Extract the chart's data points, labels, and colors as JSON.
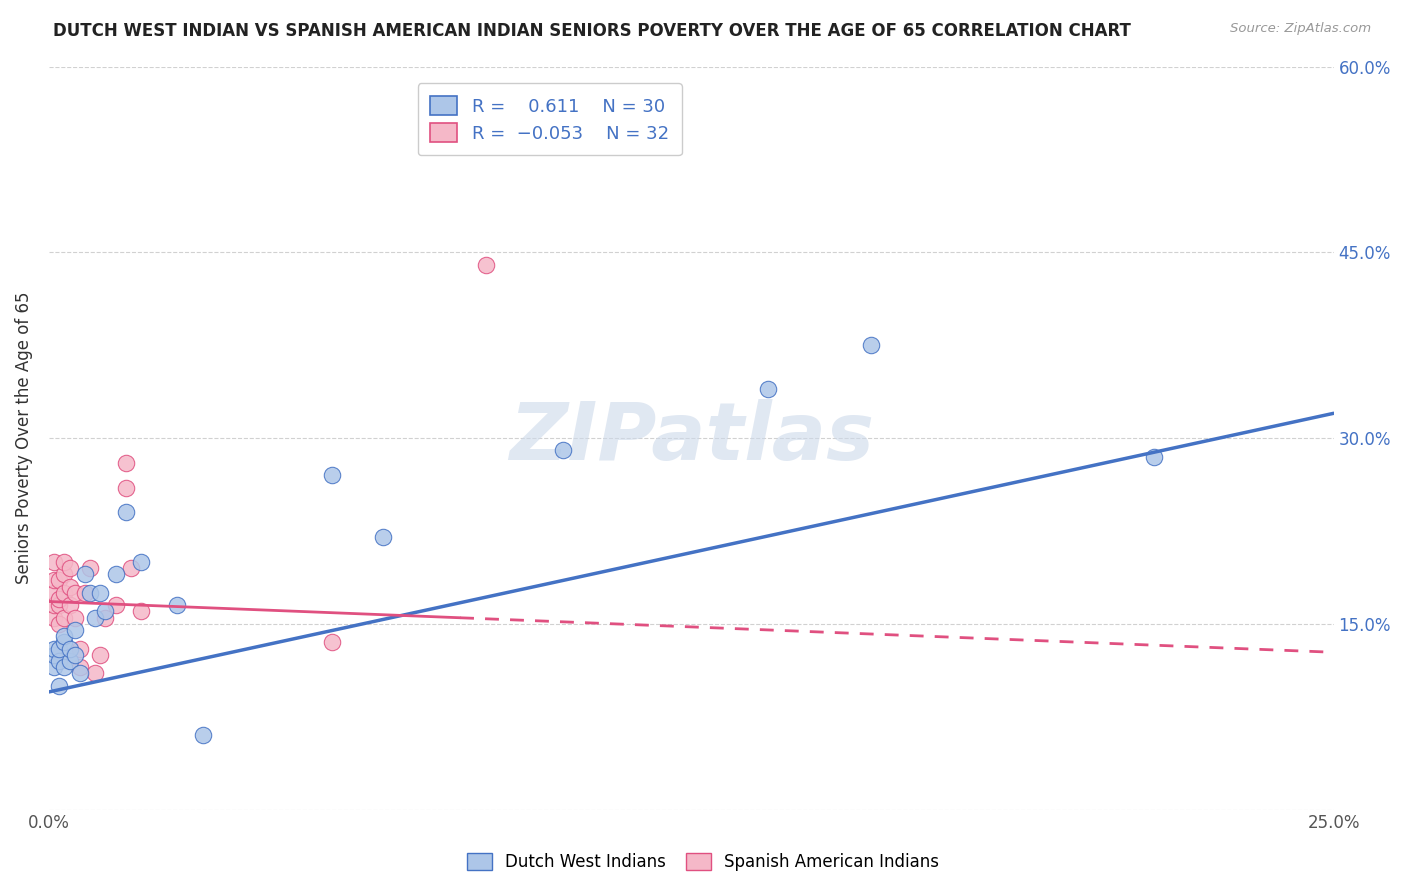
{
  "title": "DUTCH WEST INDIAN VS SPANISH AMERICAN INDIAN SENIORS POVERTY OVER THE AGE OF 65 CORRELATION CHART",
  "source": "Source: ZipAtlas.com",
  "ylabel": "Seniors Poverty Over the Age of 65",
  "xmin": 0.0,
  "xmax": 0.25,
  "ymin": 0.0,
  "ymax": 0.6,
  "color_blue": "#adc6e8",
  "color_pink": "#f5b8c8",
  "line_color_blue": "#4472c4",
  "line_color_pink": "#e05080",
  "watermark_color": "#ccd9ea",
  "dutch_west_indian_x": [
    0.001,
    0.001,
    0.001,
    0.002,
    0.002,
    0.002,
    0.003,
    0.003,
    0.003,
    0.004,
    0.004,
    0.005,
    0.005,
    0.006,
    0.007,
    0.008,
    0.009,
    0.01,
    0.011,
    0.013,
    0.015,
    0.018,
    0.025,
    0.03,
    0.055,
    0.065,
    0.1,
    0.14,
    0.16,
    0.215
  ],
  "dutch_west_indian_y": [
    0.115,
    0.125,
    0.13,
    0.1,
    0.12,
    0.13,
    0.115,
    0.135,
    0.14,
    0.12,
    0.13,
    0.125,
    0.145,
    0.11,
    0.19,
    0.175,
    0.155,
    0.175,
    0.16,
    0.19,
    0.24,
    0.2,
    0.165,
    0.06,
    0.27,
    0.22,
    0.29,
    0.34,
    0.375,
    0.285
  ],
  "spanish_american_indian_x": [
    0.001,
    0.001,
    0.001,
    0.001,
    0.001,
    0.002,
    0.002,
    0.002,
    0.002,
    0.003,
    0.003,
    0.003,
    0.003,
    0.004,
    0.004,
    0.004,
    0.005,
    0.005,
    0.006,
    0.006,
    0.007,
    0.008,
    0.009,
    0.01,
    0.011,
    0.013,
    0.015,
    0.015,
    0.016,
    0.018,
    0.055,
    0.085
  ],
  "spanish_american_indian_y": [
    0.155,
    0.165,
    0.175,
    0.185,
    0.2,
    0.15,
    0.165,
    0.17,
    0.185,
    0.155,
    0.175,
    0.19,
    0.2,
    0.165,
    0.18,
    0.195,
    0.155,
    0.175,
    0.115,
    0.13,
    0.175,
    0.195,
    0.11,
    0.125,
    0.155,
    0.165,
    0.26,
    0.28,
    0.195,
    0.16,
    0.135,
    0.44
  ],
  "blue_line_x0": 0.0,
  "blue_line_y0": 0.095,
  "blue_line_x1": 0.25,
  "blue_line_y1": 0.32,
  "pink_line_x0": 0.0,
  "pink_line_y0": 0.168,
  "pink_line_x1": 0.25,
  "pink_line_y1": 0.127
}
